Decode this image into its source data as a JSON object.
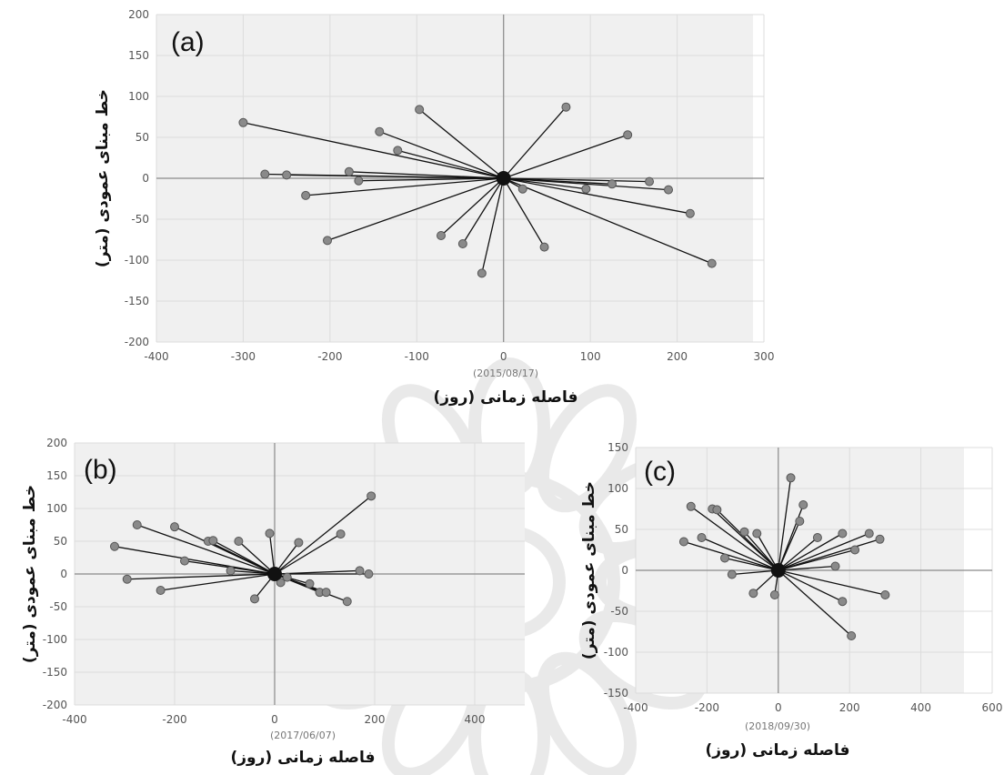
{
  "chart_data": [
    {
      "type": "scatter",
      "panel_label": "(a)",
      "master_date": "(2015/08/17)",
      "xlabel": "فاصله زمانی (روز)",
      "ylabel": "خط مبنای عمودی (متر)",
      "xlim": [
        -400,
        300
      ],
      "ylim": [
        -200,
        200
      ],
      "x_ticks": [
        -400,
        -300,
        -200,
        -100,
        0,
        100,
        200,
        300
      ],
      "y_ticks": [
        -200,
        -150,
        -100,
        -50,
        0,
        50,
        100,
        150,
        200
      ],
      "master": [
        0,
        0
      ],
      "points": [
        [
          -300,
          68
        ],
        [
          -97,
          84
        ],
        [
          -143,
          57
        ],
        [
          -122,
          34
        ],
        [
          -275,
          5
        ],
        [
          -250,
          4
        ],
        [
          -178,
          8
        ],
        [
          -167,
          -3
        ],
        [
          -228,
          -21
        ],
        [
          -203,
          -76
        ],
        [
          -72,
          -70
        ],
        [
          -47,
          -80
        ],
        [
          -25,
          -116
        ],
        [
          47,
          -84
        ],
        [
          72,
          87
        ],
        [
          143,
          53
        ],
        [
          168,
          -4
        ],
        [
          125,
          -7
        ],
        [
          95,
          -13
        ],
        [
          22,
          -13
        ],
        [
          190,
          -14
        ],
        [
          215,
          -43
        ],
        [
          240,
          -104
        ]
      ],
      "grid": true,
      "colors": {
        "line": "#111111",
        "point": "#8a8a8a",
        "master": "#111111",
        "background": "#f0f0f0"
      }
    },
    {
      "type": "scatter",
      "panel_label": "(b)",
      "master_date": "(2017/06/07)",
      "xlabel": "فاصله زمانی (روز)",
      "ylabel": "خط مبنای عمودی (متر)",
      "xlim": [
        -400,
        500
      ],
      "ylim": [
        -200,
        200
      ],
      "x_ticks": [
        -400,
        -200,
        0,
        200,
        400
      ],
      "y_ticks": [
        -200,
        -150,
        -100,
        -50,
        0,
        50,
        100,
        150,
        200
      ],
      "master": [
        0,
        0
      ],
      "points": [
        [
          -320,
          42
        ],
        [
          -275,
          75
        ],
        [
          -200,
          72
        ],
        [
          -180,
          20
        ],
        [
          -133,
          50
        ],
        [
          -123,
          51
        ],
        [
          -72,
          50
        ],
        [
          -295,
          -8
        ],
        [
          -228,
          -25
        ],
        [
          -88,
          5
        ],
        [
          -10,
          62
        ],
        [
          48,
          48
        ],
        [
          132,
          61
        ],
        [
          193,
          119
        ],
        [
          170,
          5
        ],
        [
          188,
          0
        ],
        [
          70,
          -15
        ],
        [
          90,
          -28
        ],
        [
          103,
          -28
        ],
        [
          145,
          -42
        ],
        [
          -40,
          -38
        ],
        [
          12,
          -13
        ],
        [
          25,
          -5
        ]
      ],
      "grid": true,
      "colors": {
        "line": "#111111",
        "point": "#8a8a8a",
        "master": "#111111",
        "background": "#f0f0f0"
      }
    },
    {
      "type": "scatter",
      "panel_label": "(c)",
      "master_date": "(2018/09/30)",
      "xlabel": "فاصله زمانی (روز)",
      "ylabel": "خط مبنای عمودی (متر)",
      "xlim": [
        -400,
        600
      ],
      "ylim": [
        -150,
        150
      ],
      "x_ticks": [
        -400,
        -200,
        0,
        200,
        400,
        600
      ],
      "y_ticks": [
        -150,
        -100,
        -50,
        0,
        50,
        100,
        150
      ],
      "master": [
        0,
        0
      ],
      "points": [
        [
          -245,
          78
        ],
        [
          -185,
          75
        ],
        [
          -172,
          74
        ],
        [
          -95,
          47
        ],
        [
          -60,
          45
        ],
        [
          -265,
          35
        ],
        [
          -215,
          40
        ],
        [
          -150,
          15
        ],
        [
          -130,
          -5
        ],
        [
          -70,
          -28
        ],
        [
          -10,
          -30
        ],
        [
          35,
          113
        ],
        [
          70,
          80
        ],
        [
          60,
          60
        ],
        [
          110,
          40
        ],
        [
          180,
          45
        ],
        [
          255,
          45
        ],
        [
          285,
          38
        ],
        [
          215,
          25
        ],
        [
          160,
          5
        ],
        [
          300,
          -30
        ],
        [
          180,
          -38
        ],
        [
          205,
          -80
        ]
      ],
      "grid": true,
      "colors": {
        "line": "#111111",
        "point": "#8a8a8a",
        "master": "#111111",
        "background": "#f0f0f0"
      }
    }
  ]
}
